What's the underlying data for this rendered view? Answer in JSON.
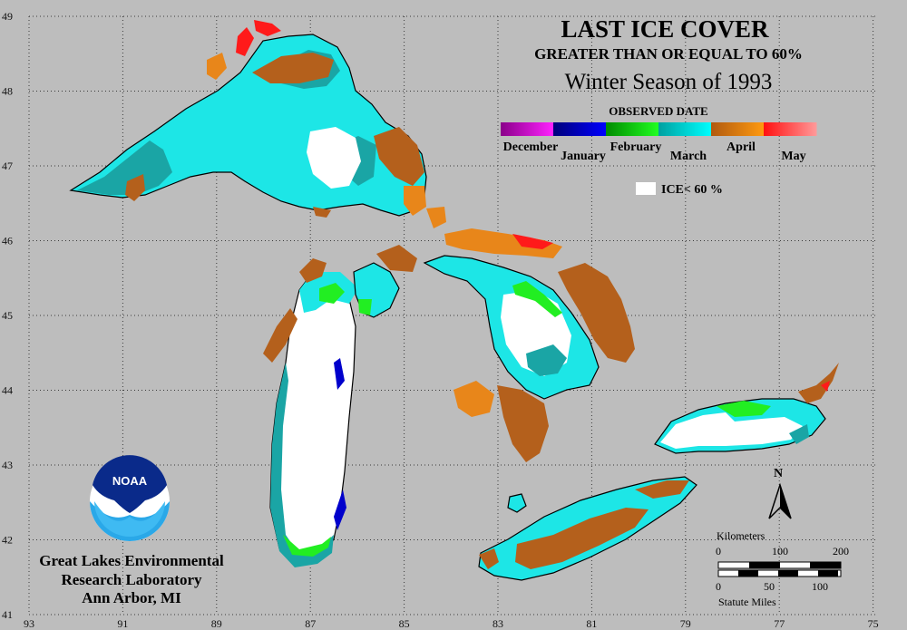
{
  "title": {
    "line1": "LAST ICE COVER",
    "line2": "GREATER THAN OR EQUAL TO 60%",
    "line3": "Winter Season of 1993"
  },
  "legend": {
    "heading": "OBSERVED DATE",
    "months": [
      {
        "label": "December",
        "color_start": "#8a008a",
        "color_end": "#ff22ff"
      },
      {
        "label": "January",
        "color_start": "#00007a",
        "color_end": "#0000ff"
      },
      {
        "label": "February",
        "color_start": "#008a00",
        "color_end": "#22ff22"
      },
      {
        "label": "March",
        "color_start": "#00a0a0",
        "color_end": "#00ffff"
      },
      {
        "label": "April",
        "color_start": "#b05a10",
        "color_end": "#ff9a10"
      },
      {
        "label": "May",
        "color_start": "#ff1010",
        "color_end": "#ff9a9a"
      }
    ],
    "ice_less_label": "ICE< 60 %"
  },
  "colors": {
    "background": "#bdbdbd",
    "march_cyan": "#1de6e6",
    "march_teal": "#1aa5a5",
    "april_brown": "#b4601c",
    "april_orange": "#e8861a",
    "feb_green": "#22ee22",
    "jan_blue": "#0000cc",
    "may_red": "#ff1a1a",
    "white_ice": "#ffffff"
  },
  "axes": {
    "longitudes": [
      "93",
      "91",
      "89",
      "87",
      "85",
      "83",
      "81",
      "79",
      "77",
      "75"
    ],
    "latitudes": [
      "49",
      "48",
      "47",
      "46",
      "45",
      "44",
      "43",
      "42",
      "41"
    ]
  },
  "scale_bar": {
    "km_title": "Kilometers",
    "km_ticks": [
      "0",
      "100",
      "200"
    ],
    "mi_ticks": [
      "0",
      "50",
      "100"
    ],
    "mi_title": "Statute Miles"
  },
  "north_arrow": {
    "label": "N"
  },
  "organization": {
    "logo_text": "NOAA",
    "line1": "Great Lakes Environmental",
    "line2": "Research Laboratory",
    "line3": "Ann Arbor, MI"
  }
}
